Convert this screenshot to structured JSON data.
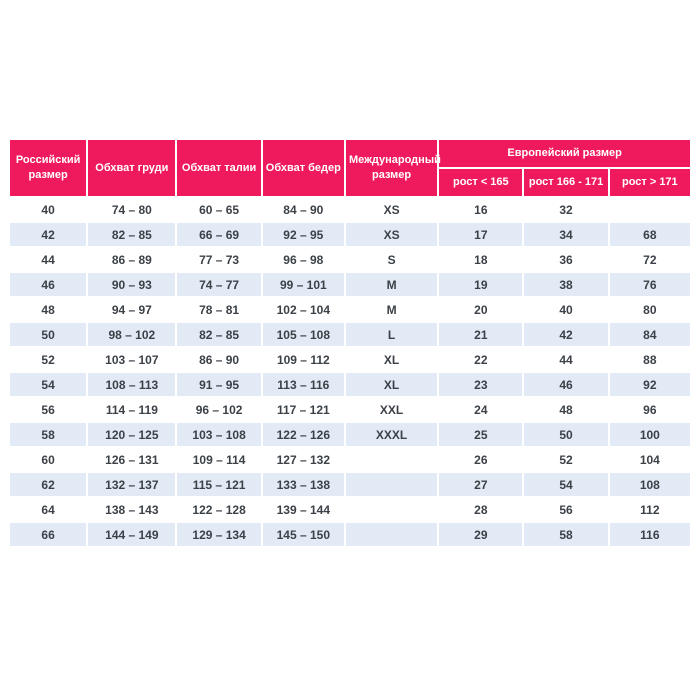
{
  "colors": {
    "header_bg": "#EE1A5D",
    "header_text": "#FFFFFF",
    "row_bg": "#FFFFFF",
    "row_alt_bg": "#E1EAF5",
    "cell_text": "#3B4147",
    "page_bg": "#FFFFFF"
  },
  "chart_data": {
    "type": "table",
    "title": "",
    "headers": {
      "russian_size": "Российский размер",
      "chest": "Обхват груди",
      "waist": "Обхват талии",
      "hips": "Обхват бедер",
      "international_size": "Международный размер",
      "european_size": "Европейский размер",
      "height_lt_165": "рост < 165",
      "height_166_171": "рост 166 - 171",
      "height_gt_171": "рост > 171"
    },
    "rows": [
      [
        "40",
        "74 – 80",
        "60 – 65",
        "84 – 90",
        "XS",
        "16",
        "32",
        ""
      ],
      [
        "42",
        "82 – 85",
        "66 – 69",
        "92 – 95",
        "XS",
        "17",
        "34",
        "68"
      ],
      [
        "44",
        "86 – 89",
        "77 – 73",
        "96 – 98",
        "S",
        "18",
        "36",
        "72"
      ],
      [
        "46",
        "90 – 93",
        "74 – 77",
        "99 – 101",
        "M",
        "19",
        "38",
        "76"
      ],
      [
        "48",
        "94 – 97",
        "78 – 81",
        "102 – 104",
        "M",
        "20",
        "40",
        "80"
      ],
      [
        "50",
        "98 – 102",
        "82 – 85",
        "105 – 108",
        "L",
        "21",
        "42",
        "84"
      ],
      [
        "52",
        "103 – 107",
        "86 – 90",
        "109 – 112",
        "XL",
        "22",
        "44",
        "88"
      ],
      [
        "54",
        "108 – 113",
        "91 – 95",
        "113 – 116",
        "XL",
        "23",
        "46",
        "92"
      ],
      [
        "56",
        "114 – 119",
        "96 – 102",
        "117 – 121",
        "XXL",
        "24",
        "48",
        "96"
      ],
      [
        "58",
        "120 – 125",
        "103 – 108",
        "122 – 126",
        "XXXL",
        "25",
        "50",
        "100"
      ],
      [
        "60",
        "126 – 131",
        "109 – 114",
        "127 – 132",
        "",
        "26",
        "52",
        "104"
      ],
      [
        "62",
        "132 – 137",
        "115 – 121",
        "133 – 138",
        "",
        "27",
        "54",
        "108"
      ],
      [
        "64",
        "138 – 143",
        "122 – 128",
        "139 – 144",
        "",
        "28",
        "56",
        "112"
      ],
      [
        "66",
        "144 – 149",
        "129 – 134",
        "145 – 150",
        "",
        "29",
        "58",
        "116"
      ]
    ]
  }
}
